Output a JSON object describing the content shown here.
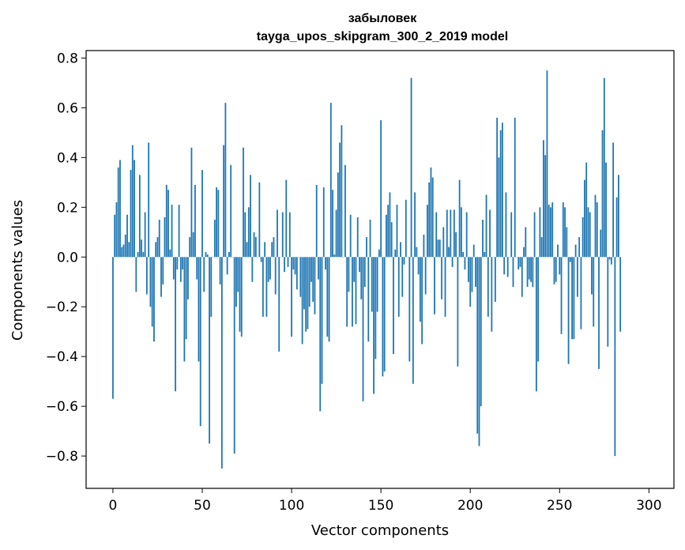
{
  "chart_data": {
    "type": "bar",
    "title_line1": "забыловек",
    "title_line2": "tayga_upos_skipgram_300_2_2019 model",
    "xlabel": "Vector components",
    "ylabel": "Components values",
    "xlim": [
      -15,
      314
    ],
    "ylim": [
      -0.93,
      0.83
    ],
    "xticks": [
      0,
      50,
      100,
      150,
      200,
      250,
      300
    ],
    "yticks": [
      -0.8,
      -0.6,
      -0.4,
      -0.2,
      0.0,
      0.2,
      0.4,
      0.6,
      0.8
    ],
    "ytick_labels": [
      "−0.8",
      "−0.6",
      "−0.4",
      "−0.2",
      "0.0",
      "0.2",
      "0.4",
      "0.6",
      "0.8"
    ],
    "bar_color": "#1f77b4",
    "grid": false,
    "values": [
      -0.57,
      0.17,
      0.22,
      0.36,
      0.39,
      0.04,
      0.05,
      0.09,
      0.17,
      0.06,
      0.35,
      0.45,
      0.39,
      -0.14,
      0.02,
      0.33,
      0.07,
      0.02,
      0.18,
      -0.15,
      0.46,
      -0.2,
      -0.28,
      -0.34,
      0.06,
      0.08,
      0.15,
      -0.16,
      -0.11,
      0.16,
      0.29,
      0.27,
      0.03,
      0.21,
      -0.09,
      -0.54,
      -0.05,
      0.21,
      -0.1,
      -0.05,
      -0.42,
      -0.33,
      -0.17,
      0.08,
      0.44,
      0.1,
      0.29,
      -0.09,
      -0.42,
      -0.68,
      0.35,
      -0.14,
      0.02,
      0.01,
      -0.75,
      -0.24,
      0.0,
      0.15,
      0.28,
      0.27,
      -0.11,
      -0.85,
      0.45,
      0.62,
      -0.07,
      0.02,
      0.37,
      0.0,
      -0.79,
      -0.2,
      -0.14,
      -0.3,
      -0.32,
      0.44,
      0.18,
      0.06,
      0.2,
      0.33,
      -0.1,
      0.1,
      0.08,
      0.0,
      0.3,
      -0.02,
      -0.24,
      0.06,
      -0.24,
      -0.1,
      -0.09,
      0.06,
      0.08,
      -0.15,
      0.19,
      -0.38,
      0.0,
      0.18,
      -0.06,
      0.31,
      -0.04,
      0.18,
      -0.32,
      -0.05,
      -0.07,
      -0.13,
      0.0,
      -0.16,
      -0.35,
      -0.21,
      -0.3,
      -0.29,
      -0.2,
      -0.1,
      -0.18,
      -0.23,
      0.29,
      -0.09,
      -0.62,
      -0.51,
      0.28,
      -0.05,
      -0.32,
      -0.34,
      0.62,
      0.27,
      0.01,
      0.19,
      0.34,
      0.46,
      0.53,
      0.0,
      0.37,
      -0.28,
      -0.14,
      0.17,
      -0.28,
      -0.1,
      -0.27,
      0.16,
      -0.06,
      -0.17,
      -0.58,
      -0.12,
      0.08,
      -0.34,
      0.15,
      -0.22,
      -0.55,
      -0.41,
      -0.22,
      0.03,
      0.55,
      -0.48,
      -0.46,
      0.17,
      0.21,
      0.26,
      0.14,
      -0.39,
      0.03,
      0.21,
      -0.24,
      0.06,
      -0.16,
      -0.03,
      0.23,
      0.0,
      -0.42,
      0.72,
      -0.51,
      0.26,
      0.04,
      -0.07,
      -0.26,
      -0.35,
      0.09,
      -0.15,
      0.21,
      0.3,
      0.36,
      0.32,
      -0.23,
      0.18,
      0.07,
      0.07,
      -0.17,
      0.12,
      -0.24,
      0.19,
      0.04,
      0.19,
      -0.04,
      0.19,
      0.1,
      -0.44,
      0.31,
      0.2,
      0.02,
      -0.05,
      0.18,
      -0.1,
      -0.2,
      -0.14,
      0.05,
      -0.12,
      -0.71,
      -0.76,
      -0.6,
      0.15,
      0.02,
      0.25,
      -0.24,
      0.19,
      -0.3,
      0.0,
      -0.18,
      0.56,
      0.4,
      0.51,
      0.54,
      -0.07,
      0.26,
      -0.08,
      0.0,
      0.18,
      -0.12,
      0.56,
      0.0,
      -0.05,
      -0.04,
      -0.16,
      0.04,
      0.12,
      -0.12,
      -0.09,
      -0.1,
      -0.12,
      0.18,
      -0.54,
      -0.42,
      0.2,
      0.08,
      0.47,
      0.41,
      0.75,
      0.21,
      0.2,
      0.22,
      -0.11,
      -0.1,
      0.05,
      -0.07,
      -0.31,
      0.22,
      0.2,
      0.12,
      -0.43,
      -0.02,
      -0.33,
      -0.33,
      0.05,
      -0.16,
      0.08,
      -0.29,
      0.16,
      0.31,
      0.38,
      0.2,
      0.18,
      -0.15,
      -0.28,
      0.25,
      0.22,
      -0.45,
      0.11,
      0.51,
      0.72,
      0.38,
      -0.36,
      -0.01,
      -0.03,
      0.46,
      -0.8,
      0.24,
      0.33,
      -0.3
    ]
  }
}
